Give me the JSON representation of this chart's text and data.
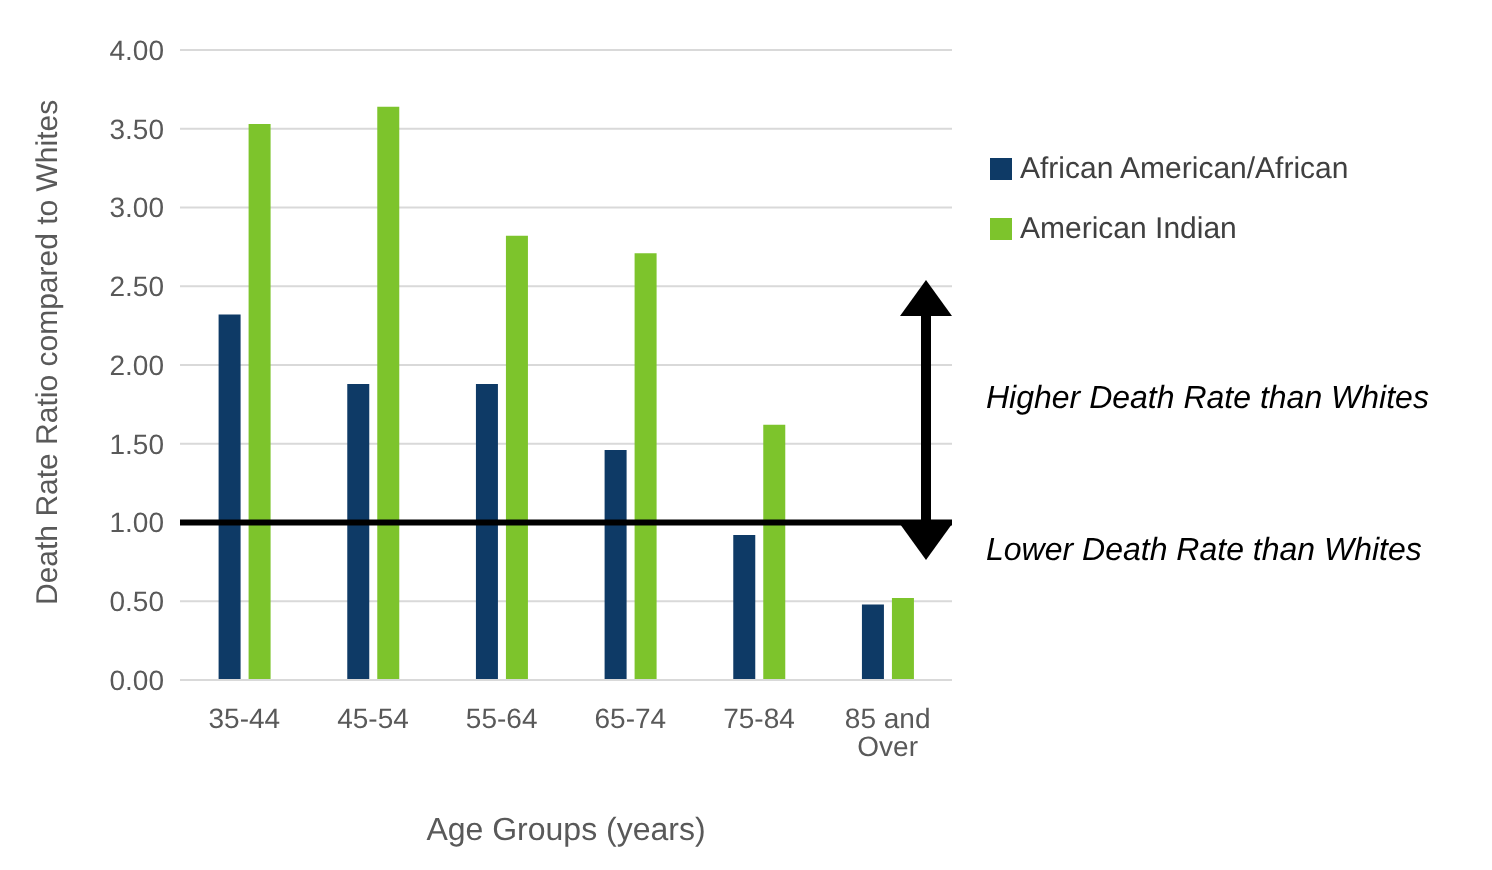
{
  "chart_data": {
    "type": "bar",
    "ylabel": "Death Rate Ratio compared to Whites",
    "xlabel": "Age Groups (years)",
    "categories": [
      "35-44",
      "45-54",
      "55-64",
      "65-74",
      "75-84",
      "85 and Over"
    ],
    "series": [
      {
        "name": "African American/African",
        "color": "#0e3a66",
        "values": [
          2.32,
          1.88,
          1.88,
          1.46,
          0.92,
          0.48
        ]
      },
      {
        "name": "American Indian",
        "color": "#7dc42c",
        "values": [
          3.53,
          3.64,
          2.82,
          2.71,
          1.62,
          0.52
        ]
      }
    ],
    "ylim": [
      0,
      4
    ],
    "yticks": [
      {
        "value": 0,
        "label": "0.00"
      },
      {
        "value": 0.5,
        "label": "0.50"
      },
      {
        "value": 1,
        "label": "1.00"
      },
      {
        "value": 1.5,
        "label": "1.50"
      },
      {
        "value": 2,
        "label": "2.00"
      },
      {
        "value": 2.5,
        "label": "2.50"
      },
      {
        "value": 3,
        "label": "3.00"
      },
      {
        "value": 3.5,
        "label": "3.50"
      },
      {
        "value": 4,
        "label": "4.00"
      }
    ],
    "grid": "y",
    "legend": "top right",
    "ref_lines": [
      {
        "axis": "y",
        "value": 1,
        "color": "#000000"
      }
    ],
    "annotations": [
      "Higher Death Rate than Whites",
      "Lower Death Rate than Whites"
    ]
  }
}
